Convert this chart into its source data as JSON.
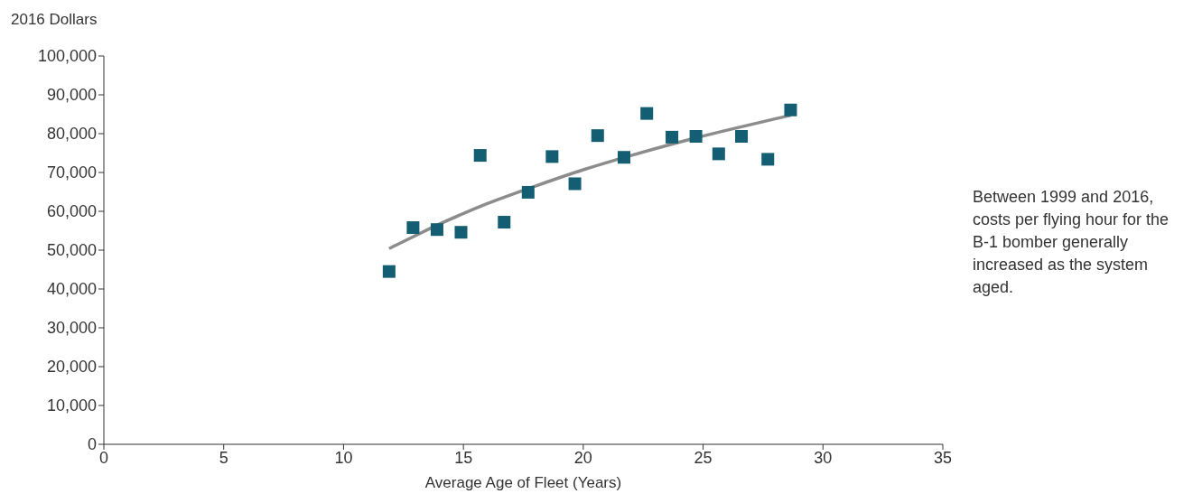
{
  "chart_data": {
    "type": "scatter",
    "ylabel": "2016 Dollars",
    "xlabel": "Average Age of Fleet (Years)",
    "annotations": [
      "Between 1999 and 2016, costs per flying hour for the B-1 bomber generally increased as the system aged."
    ],
    "xlim": [
      0,
      35
    ],
    "xticks": [
      0,
      5,
      10,
      15,
      20,
      25,
      30,
      35
    ],
    "ylim": [
      0,
      100000
    ],
    "yticks": [
      {
        "value": 0,
        "label": "0"
      },
      {
        "value": 10000,
        "label": "10,000"
      },
      {
        "value": 20000,
        "label": "20,000"
      },
      {
        "value": 30000,
        "label": "30,000"
      },
      {
        "value": 40000,
        "label": "40,000"
      },
      {
        "value": 50000,
        "label": "50,000"
      },
      {
        "value": 60000,
        "label": "60,000"
      },
      {
        "value": 70000,
        "label": "70,000"
      },
      {
        "value": 80000,
        "label": "80,000"
      },
      {
        "value": 90000,
        "label": "90,000"
      },
      {
        "value": 100000,
        "label": "100,000"
      }
    ],
    "grid": false,
    "series": [
      {
        "marker": "square",
        "color": "#135e73",
        "x": [
          11.9,
          12.9,
          13.9,
          14.9,
          15.7,
          16.7,
          17.7,
          18.7,
          19.65,
          20.6,
          21.7,
          22.65,
          23.7,
          24.7,
          25.65,
          26.6,
          27.7,
          28.65
        ],
        "values": [
          44500,
          55800,
          55300,
          54600,
          74400,
          57200,
          64900,
          74100,
          67100,
          79500,
          73900,
          85200,
          79100,
          79300,
          74800,
          79300,
          73400,
          86100
        ]
      },
      {
        "type": "line",
        "color": "#8c8c8c",
        "x": [
          11.9,
          12,
          14,
          16,
          18,
          20,
          22,
          24,
          26,
          28,
          28.65
        ],
        "values": [
          50400,
          50700,
          56700,
          62000,
          66500,
          70700,
          74400,
          77800,
          80900,
          83800,
          84700
        ]
      }
    ]
  }
}
